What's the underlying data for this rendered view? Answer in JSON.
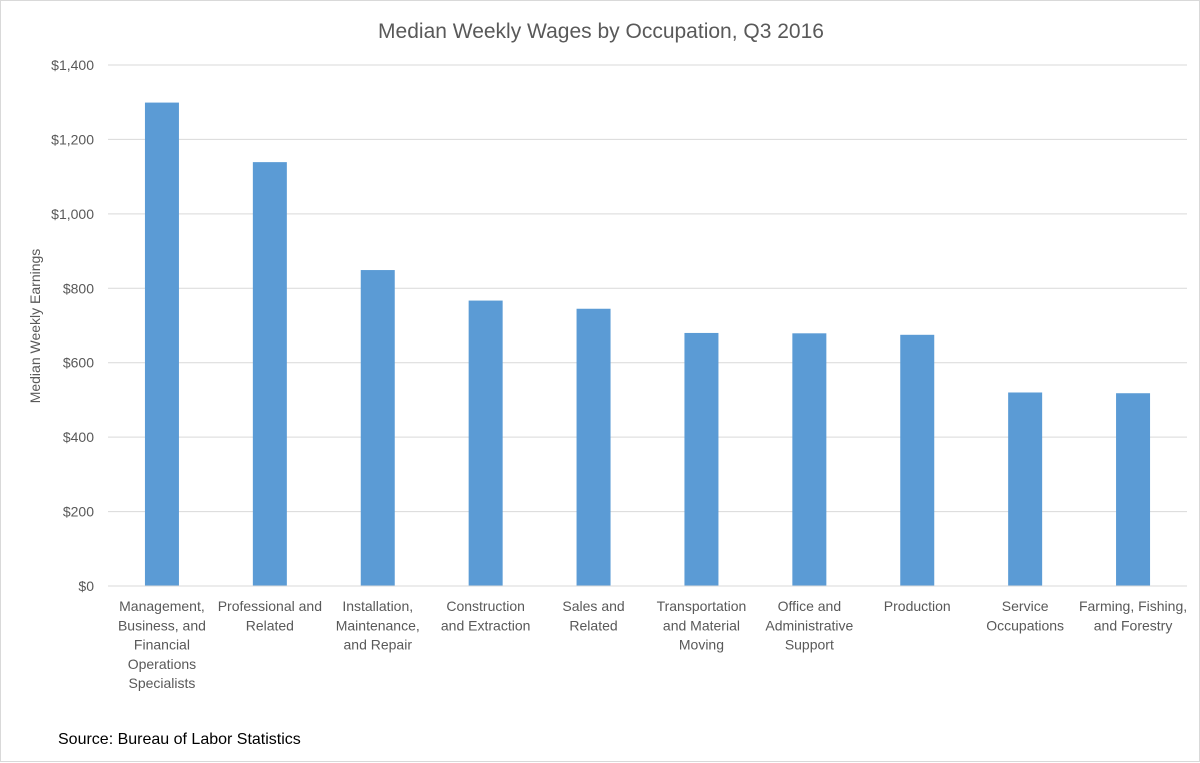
{
  "chart_data": {
    "type": "bar",
    "title": "Median Weekly Wages by Occupation, Q3 2016",
    "xlabel": "",
    "ylabel": "Median Weekly Earnings",
    "ylim": [
      0,
      1400
    ],
    "yticks": [
      0,
      200,
      400,
      600,
      800,
      1000,
      1200,
      1400
    ],
    "ytick_labels": [
      "$0",
      "$200",
      "$400",
      "$600",
      "$800",
      "$1,000",
      "$1,200",
      "$1,400"
    ],
    "grid": true,
    "legend": "none",
    "categories": [
      [
        "Management,",
        "Business, and",
        "Financial",
        "Operations",
        "Specialists"
      ],
      [
        "Professional and",
        "Related"
      ],
      [
        "Installation,",
        "Maintenance,",
        "and Repair"
      ],
      [
        "Construction",
        "and Extraction"
      ],
      [
        "Sales and",
        "Related"
      ],
      [
        "Transportation",
        "and Material",
        "Moving"
      ],
      [
        "Office and",
        "Administrative",
        "Support"
      ],
      [
        "Production"
      ],
      [
        "Service",
        "Occupations"
      ],
      [
        "Farming, Fishing,",
        "and Forestry"
      ]
    ],
    "values": [
      1299,
      1139,
      849,
      767,
      745,
      680,
      679,
      675,
      520,
      518
    ],
    "bar_color": "#5b9bd5",
    "grid_color": "#d9d9d9",
    "source": "Source: Bureau of Labor Statistics"
  }
}
